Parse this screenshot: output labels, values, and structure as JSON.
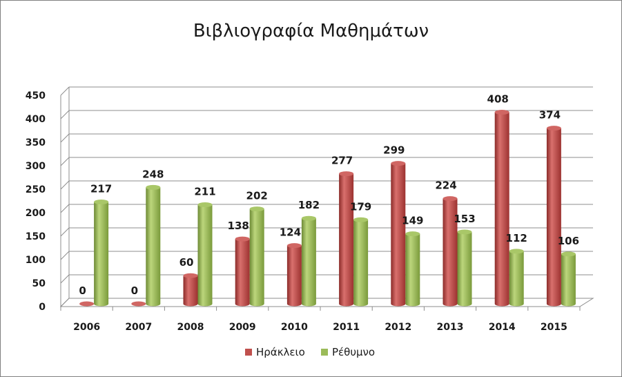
{
  "chart_data": {
    "type": "bar",
    "title": "Βιβλιογραφία Μαθημάτων",
    "categories": [
      "2006",
      "2007",
      "2008",
      "2009",
      "2010",
      "2011",
      "2012",
      "2013",
      "2014",
      "2015"
    ],
    "series": [
      {
        "name": "Ηράκλειο",
        "color": "#c0504d",
        "values": [
          0,
          0,
          60,
          138,
          124,
          277,
          299,
          224,
          408,
          374
        ]
      },
      {
        "name": "Ρέθυμνο",
        "color": "#9bbb59",
        "values": [
          217,
          248,
          211,
          202,
          182,
          179,
          149,
          153,
          112,
          106
        ]
      }
    ],
    "ylim": [
      0,
      450
    ],
    "yticks": [
      0,
      50,
      100,
      150,
      200,
      250,
      300,
      350,
      400,
      450
    ],
    "grid": true,
    "legend_position": "bottom",
    "style": "3d-cylinder"
  }
}
